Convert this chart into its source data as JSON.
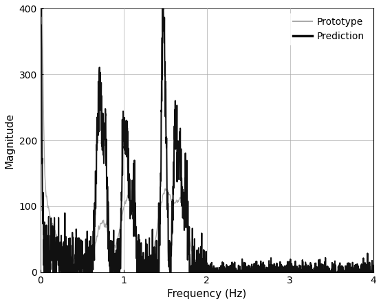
{
  "title": "",
  "xlabel": "Frequency (Hz)",
  "ylabel": "Magnitude",
  "xlim": [
    0,
    4
  ],
  "ylim": [
    0,
    400
  ],
  "xticks": [
    0,
    1,
    2,
    3,
    4
  ],
  "yticks": [
    0,
    100,
    200,
    300,
    400
  ],
  "legend_labels": [
    "Prototype",
    "Prediction"
  ],
  "prototype_color": "#aaaaaa",
  "prediction_color": "#111111",
  "prototype_lw": 1.0,
  "prediction_lw": 1.5,
  "figsize": [
    5.54,
    4.42
  ],
  "dpi": 100
}
